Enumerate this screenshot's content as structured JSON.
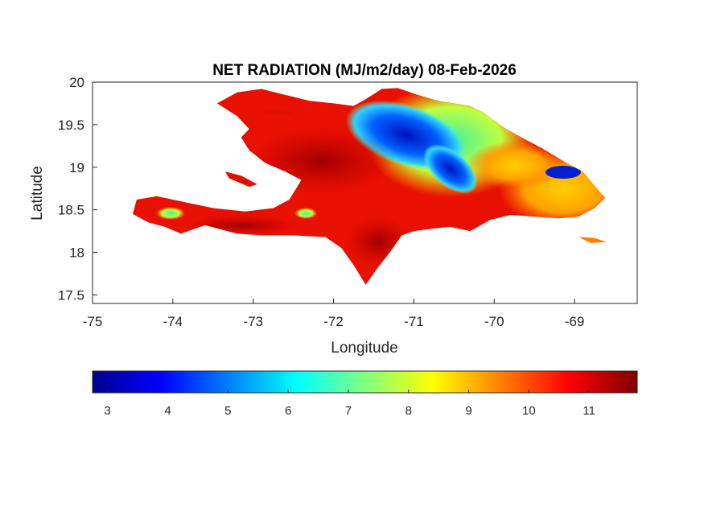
{
  "chart_data": {
    "type": "heatmap",
    "title": "NET RADIATION (MJ/m2/day) 08-Feb-2026",
    "xlabel": "Longitude",
    "ylabel": "Latitude",
    "xlim": [
      -75,
      -68.22
    ],
    "ylim": [
      17.4,
      20
    ],
    "xticks": [
      -75,
      -74,
      -73,
      -72,
      -71,
      -70,
      -69
    ],
    "xtick_labels": [
      "-75",
      "-74",
      "-73",
      "-72",
      "-71",
      "-70",
      "-69"
    ],
    "yticks": [
      17.5,
      18,
      18.5,
      19,
      19.5,
      20
    ],
    "ytick_labels": [
      "17.5",
      "18",
      "18.5",
      "19",
      "19.5",
      "20"
    ],
    "colormap": "jet",
    "colorbar": {
      "orientation": "horizontal",
      "placement": "below",
      "clim": [
        2.75,
        11.8
      ],
      "ticks": [
        3,
        4,
        5,
        6,
        7,
        8,
        9,
        10,
        11
      ],
      "tick_labels": [
        "3",
        "4",
        "5",
        "6",
        "7",
        "8",
        "9",
        "10",
        "11"
      ]
    },
    "grid": false,
    "colors": {
      "dominant_high": "#d40000",
      "low_center": "#0018c8",
      "frame": "#262626"
    }
  }
}
